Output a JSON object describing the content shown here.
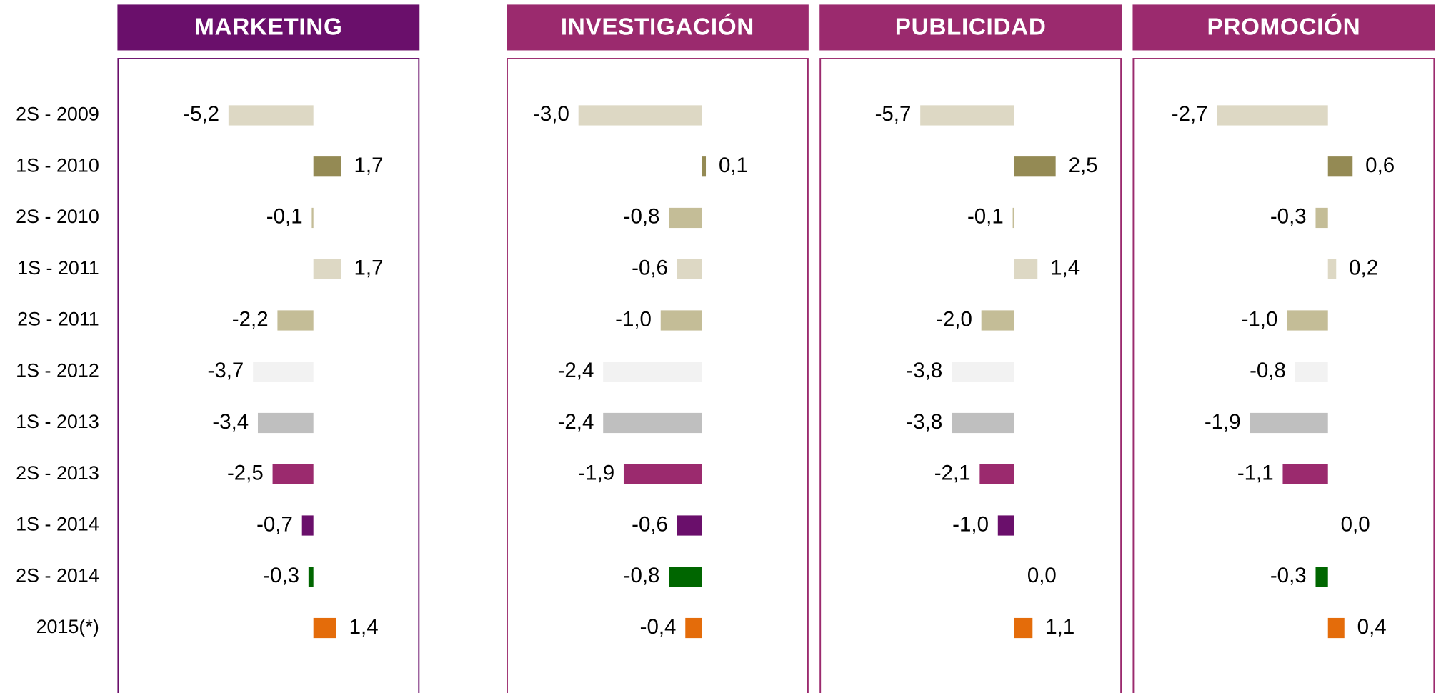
{
  "chart_data": {
    "type": "bar",
    "orientation": "horizontal",
    "categories": [
      "2S - 2009",
      "1S - 2010",
      "2S - 2010",
      "1S - 2011",
      "2S - 2011",
      "1S - 2012",
      "1S - 2013",
      "2S - 2013",
      "1S - 2014",
      "2S - 2014",
      "2015(*)"
    ],
    "colors": [
      "#ddd8c4",
      "#948a54",
      "#c4bd97",
      "#ddd8c4",
      "#c4bd97",
      "#f2f2f2",
      "#bfbfbf",
      "#9b2a6e",
      "#6a0f6b",
      "#006600",
      "#e46c0a"
    ],
    "series": [
      {
        "name": "MARKETING",
        "color": "#6a0f6b",
        "xlim": [
          -12,
          6.5
        ],
        "values": [
          -5.2,
          1.7,
          -0.1,
          1.7,
          -2.2,
          -3.7,
          -3.4,
          -2.5,
          -0.7,
          -0.3,
          1.4
        ],
        "value_labels": [
          "-5,2",
          "1,7",
          "-0,1",
          "1,7",
          "-2,2",
          "-3,7",
          "-3,4",
          "-2,5",
          "-0,7",
          "-0,3",
          "1,4"
        ]
      },
      {
        "name": "INVESTIGACIÓN",
        "color": "#9b2a6e",
        "xlim": [
          -4.75,
          2.6
        ],
        "values": [
          -3.0,
          0.1,
          -0.8,
          -0.6,
          -1.0,
          -2.4,
          -2.4,
          -1.9,
          -0.6,
          -0.8,
          -0.4
        ],
        "value_labels": [
          "-3,0",
          "0,1",
          "-0,8",
          "-0,6",
          "-1,0",
          "-2,4",
          "-2,4",
          "-1,9",
          "-0,6",
          "-0,8",
          "-0,4"
        ]
      },
      {
        "name": "PUBLICIDAD",
        "color": "#9b2a6e",
        "xlim": [
          -11.8,
          6.5
        ],
        "values": [
          -5.7,
          2.5,
          -0.1,
          1.4,
          -2.0,
          -3.8,
          -3.8,
          -2.1,
          -1.0,
          0.0,
          1.1
        ],
        "value_labels": [
          "-5,7",
          "2,5",
          "-0,1",
          "1,4",
          "-2,0",
          "-3,8",
          "-3,8",
          "-2,1",
          "-1,0",
          "0,0",
          "1,1"
        ]
      },
      {
        "name": "PROMOCIÓN",
        "color": "#9b2a6e",
        "xlim": [
          -4.75,
          2.6
        ],
        "values": [
          -2.7,
          0.6,
          -0.3,
          0.2,
          -1.0,
          -0.8,
          -1.9,
          -1.1,
          0.0,
          -0.3,
          0.4
        ],
        "value_labels": [
          "-2,7",
          "0,6",
          "-0,3",
          "0,2",
          "-1,0",
          "-0,8",
          "-1,9",
          "-1,1",
          "0,0",
          "-0,3",
          "0,4"
        ]
      }
    ]
  }
}
